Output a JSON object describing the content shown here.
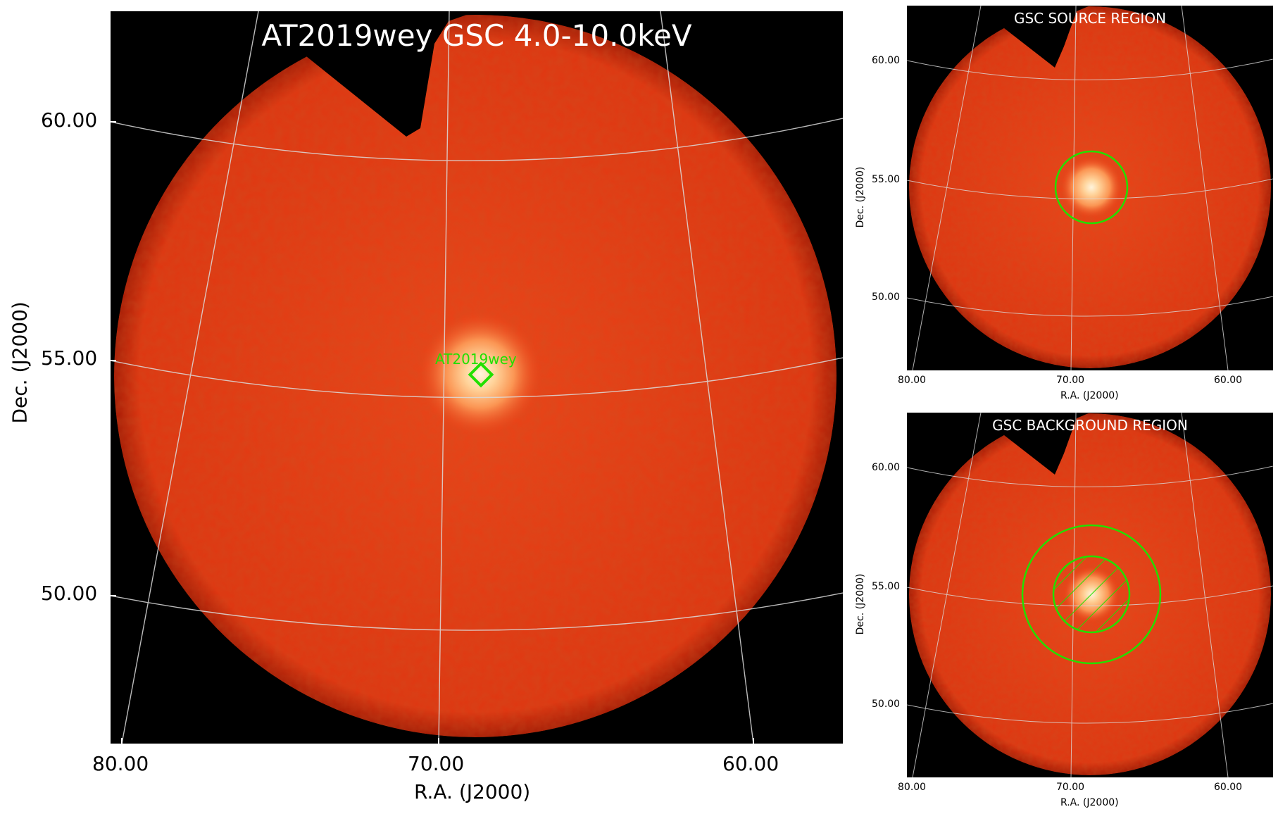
{
  "main": {
    "title": "AT2019wey GSC 4.0-10.0keV",
    "source_label": "AT2019wey",
    "xlabel": "R.A. (J2000)",
    "ylabel": "Dec. (J2000)",
    "x_ticks": [
      "80.00",
      "70.00",
      "60.00"
    ],
    "y_ticks": [
      "60.00",
      "55.00",
      "50.00"
    ]
  },
  "source_panel": {
    "title": "GSC SOURCE REGION",
    "xlabel": "R.A. (J2000)",
    "ylabel": "Dec. (J2000)",
    "x_ticks": [
      "80.00",
      "70.00",
      "60.00"
    ],
    "y_ticks": [
      "60.00",
      "55.00",
      "50.00"
    ]
  },
  "background_panel": {
    "title": "GSC BACKGROUND REGION",
    "xlabel": "R.A. (J2000)",
    "ylabel": "Dec. (J2000)",
    "x_ticks": [
      "80.00",
      "70.00",
      "60.00"
    ],
    "y_ticks": [
      "60.00",
      "55.00",
      "50.00"
    ]
  },
  "colors": {
    "field": "#e83a14",
    "field_edge": "#b81d05",
    "background": "#000000",
    "grid": "#dcdcdc",
    "region": "#22e000",
    "source_core": "#fff3d6"
  }
}
